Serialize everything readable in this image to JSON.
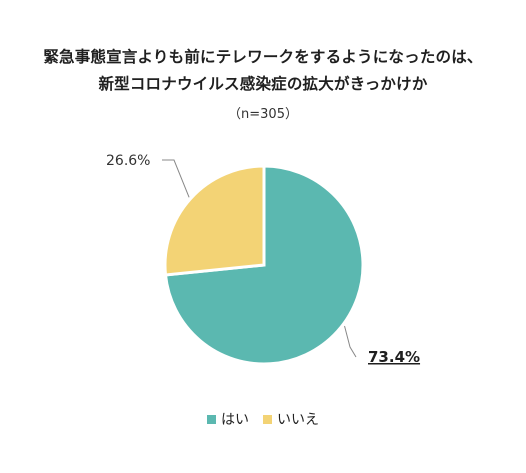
{
  "title_line1": "緊急事態宣言よりも前にテレワークをするようになったのは、",
  "title_line2": "新型コロナウイルス感染症の拡大がきっかけか",
  "subtitle": "（n=305）",
  "colors": {
    "yes": "#5BB8B0",
    "no": "#F3D375",
    "leader": "#888888"
  },
  "chart_data": {
    "type": "pie",
    "categories": [
      "はい",
      "いいえ"
    ],
    "values": [
      73.4,
      26.6
    ],
    "value_labels": [
      "73.4%",
      "26.6%"
    ],
    "start_angle_deg": 0,
    "direction": "clockwise",
    "legend": "bottom"
  }
}
